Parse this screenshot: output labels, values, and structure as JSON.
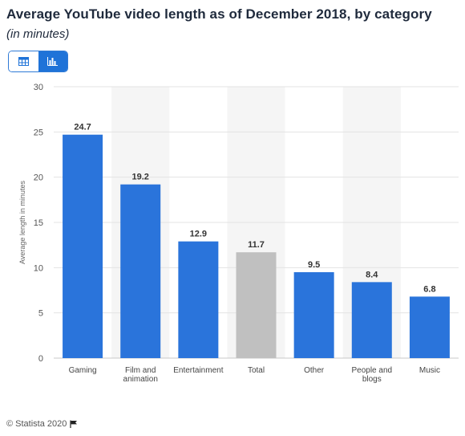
{
  "header": {
    "title": "Average YouTube video length as of December 2018, by category",
    "subtitle": "(in minutes)"
  },
  "view_toggle": {
    "table_icon": "table-icon",
    "chart_icon": "bar-chart-icon",
    "active": "chart"
  },
  "footer": {
    "copyright": "© Statista 2020",
    "flag_icon": "flag-icon"
  },
  "colors": {
    "bar": "#2a74db",
    "highlight_bar": "#c0c0c0",
    "band": "#f5f5f5",
    "grid": "#e3e3e3"
  },
  "chart_data": {
    "type": "bar",
    "categories": [
      "Gaming",
      "Film and animation",
      "Entertainment",
      "Total",
      "Other",
      "People and blogs",
      "Music"
    ],
    "category_lines": [
      [
        "Gaming"
      ],
      [
        "Film and",
        "animation"
      ],
      [
        "Entertainment"
      ],
      [
        "Total"
      ],
      [
        "Other"
      ],
      [
        "People and",
        "blogs"
      ],
      [
        "Music"
      ]
    ],
    "values": [
      24.7,
      19.2,
      12.9,
      11.7,
      9.5,
      8.4,
      6.8
    ],
    "value_labels": [
      "24.7",
      "19.2",
      "12.9",
      "11.7",
      "9.5",
      "8.4",
      "6.8"
    ],
    "highlight_index": 3,
    "ylabel": "Average length in minutes",
    "xlabel": "",
    "ylim": [
      0,
      30
    ],
    "yticks": [
      0,
      5,
      10,
      15,
      20,
      25,
      30
    ],
    "grid": true,
    "legend": "none"
  }
}
